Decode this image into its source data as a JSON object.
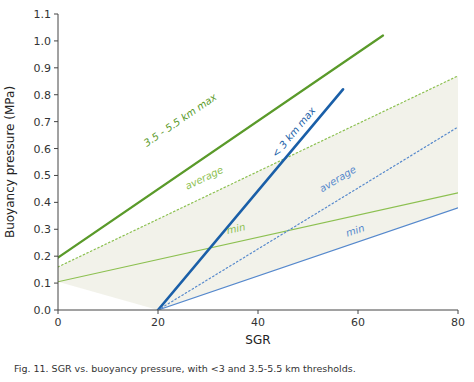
{
  "chart_data": {
    "type": "line",
    "xlabel": "SGR",
    "ylabel": "Buoyancy pressure (MPa)",
    "caption": "Fig. 11. SGR vs. buoyancy pressure, with <3 and 3.5-5.5 km thresholds.",
    "xlim": [
      0,
      80
    ],
    "ylim": [
      0,
      1.1
    ],
    "xticks": [
      0,
      20,
      40,
      60,
      80
    ],
    "yticks": [
      {
        "value": 0,
        "label": "0.0"
      },
      0.1,
      0.2,
      0.3,
      0.4,
      0.5,
      0.6,
      0.7,
      0.8,
      0.9,
      {
        "value": 1.0,
        "label": "1.0"
      },
      1.1
    ],
    "grid": false,
    "series": [
      {
        "type": "area",
        "color": "#ebebde",
        "x": [
          0,
          80,
          80,
          20,
          0
        ],
        "values": [
          0.16,
          0.87,
          0.38,
          0.0,
          0.105
        ]
      },
      {
        "type": "line",
        "color": "#5a9a2a",
        "line_style": "solid",
        "x": [
          0,
          65
        ],
        "values": [
          0.195,
          1.02
        ]
      },
      {
        "type": "line",
        "color": "#8cc050",
        "line_style": "dotted",
        "x": [
          0,
          80
        ],
        "values": [
          0.16,
          0.87
        ]
      },
      {
        "type": "line",
        "color": "#8cc050",
        "line_style": "solid",
        "x": [
          0,
          80
        ],
        "values": [
          0.105,
          0.435
        ]
      },
      {
        "type": "line",
        "color": "#1a5fa8",
        "line_style": "solid",
        "x": [
          20,
          57
        ],
        "values": [
          0.0,
          0.82
        ]
      },
      {
        "type": "line",
        "color": "#5588cc",
        "line_style": "dotted",
        "x": [
          20,
          80
        ],
        "values": [
          0.0,
          0.68
        ]
      },
      {
        "type": "line",
        "color": "#5588cc",
        "line_style": "solid",
        "x": [
          20,
          80
        ],
        "values": [
          0.0,
          0.38
        ]
      }
    ],
    "annotations": [
      {
        "text": "3.5 - 5.5 km max",
        "x": 18,
        "y": 0.6,
        "color": "#5a9a2a"
      },
      {
        "text": "average",
        "x": 26,
        "y": 0.44,
        "color": "#8cc050"
      },
      {
        "text": "min",
        "x": 34,
        "y": 0.275,
        "color": "#8cc050"
      },
      {
        "text": "< 3 km max",
        "x": 44,
        "y": 0.56,
        "color": "#1a5fa8"
      },
      {
        "text": "average",
        "x": 53,
        "y": 0.43,
        "color": "#5588cc"
      },
      {
        "text": "min",
        "x": 58,
        "y": 0.265,
        "color": "#5588cc"
      }
    ]
  }
}
